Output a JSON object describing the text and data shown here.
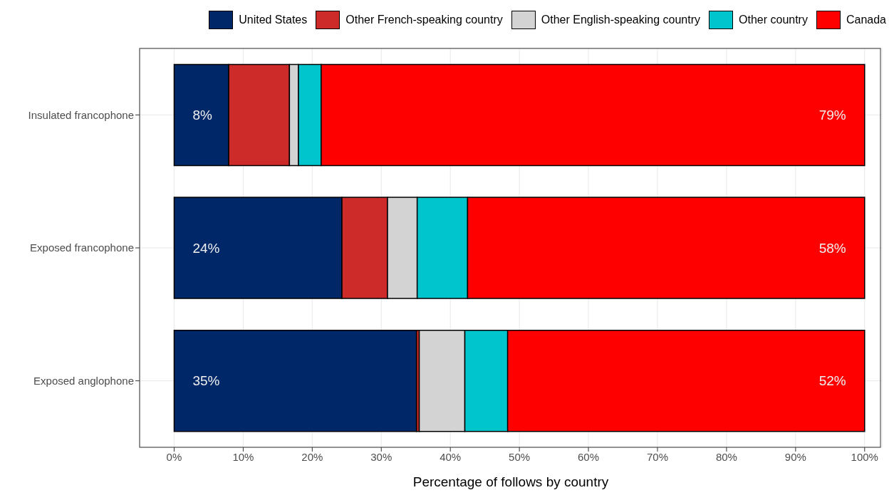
{
  "chart_data": {
    "type": "bar",
    "orientation": "horizontal",
    "stacked": true,
    "xlabel": "Percentage of follows by country",
    "categories": [
      "Insulated francophone",
      "Exposed francophone",
      "Exposed anglophone"
    ],
    "series": [
      {
        "name": "United States",
        "color": "#002868",
        "values": [
          7.9,
          24.3,
          35.1
        ],
        "value_labels": [
          "8%",
          "24%",
          "35%"
        ]
      },
      {
        "name": "Other French-speaking country",
        "color": "#cd2a2a",
        "values": [
          8.8,
          6.6,
          0.4
        ]
      },
      {
        "name": "Other English-speaking country",
        "color": "#d3d3d3",
        "values": [
          1.3,
          4.3,
          6.6
        ]
      },
      {
        "name": "Other country",
        "color": "#00c5cd",
        "values": [
          3.3,
          7.3,
          6.2
        ]
      },
      {
        "name": "Canada",
        "color": "#ff0000",
        "values": [
          78.7,
          57.5,
          51.7
        ],
        "value_labels": [
          "79%",
          "58%",
          "52%"
        ]
      }
    ],
    "xlim": [
      -5,
      102.5
    ],
    "xticks": [
      {
        "value": 0,
        "label": "0%"
      },
      {
        "value": 10,
        "label": "10%"
      },
      {
        "value": 20,
        "label": "20%"
      },
      {
        "value": 30,
        "label": "30%"
      },
      {
        "value": 40,
        "label": "40%"
      },
      {
        "value": 50,
        "label": "50%"
      },
      {
        "value": 60,
        "label": "60%"
      },
      {
        "value": 70,
        "label": "70%"
      },
      {
        "value": 80,
        "label": "80%"
      },
      {
        "value": 90,
        "label": "90%"
      },
      {
        "value": 100,
        "label": "100%"
      }
    ],
    "grid": true,
    "legend": "top right"
  }
}
